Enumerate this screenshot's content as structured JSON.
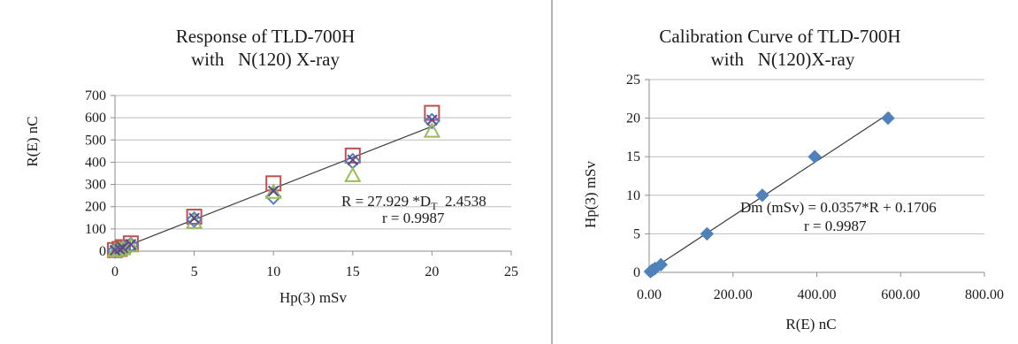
{
  "chart_data": [
    {
      "type": "scatter",
      "title": [
        "Response of TLD-700H",
        "with   N(120) X-ray"
      ],
      "xlabel": "Hp(3) mSv",
      "ylabel": "R(E) nC",
      "xlim": [
        0,
        25
      ],
      "ylim": [
        0,
        700
      ],
      "xticks": [
        "0",
        "5",
        "10",
        "15",
        "20",
        "25"
      ],
      "yticks": [
        "0",
        "100",
        "200",
        "300",
        "400",
        "500",
        "600",
        "700"
      ],
      "grid": "horizontal",
      "series": [
        {
          "marker": "square",
          "color": "#c0504d",
          "x": [
            0,
            0.3,
            0.5,
            1,
            5,
            10,
            15,
            20
          ],
          "y": [
            5,
            10,
            18,
            35,
            155,
            305,
            430,
            622
          ]
        },
        {
          "marker": "diamond",
          "color": "#4f81bd",
          "x": [
            0,
            0.3,
            0.5,
            1,
            5,
            10,
            15,
            20
          ],
          "y": [
            3,
            8,
            14,
            28,
            142,
            245,
            405,
            585
          ]
        },
        {
          "marker": "triangle",
          "color": "#9bbb59",
          "x": [
            0,
            0.3,
            0.5,
            1,
            5,
            10,
            15,
            20
          ],
          "y": [
            2,
            7,
            12,
            24,
            130,
            265,
            340,
            540
          ]
        },
        {
          "marker": "x",
          "color": "#5e4a8c",
          "x": [
            0,
            0.3,
            0.5,
            1,
            5,
            10,
            15,
            20
          ],
          "y": [
            4,
            9,
            15,
            30,
            148,
            270,
            410,
            590
          ]
        }
      ],
      "trendline": {
        "slope": 27.929,
        "intercept": 2.4538
      },
      "annotation": {
        "line1": "R = 27.929  *D",
        "sub": "T",
        "line1b": "  2.4538",
        "line2": "r = 0.9987"
      }
    },
    {
      "type": "scatter",
      "title": [
        "Calibration Curve of TLD-700H",
        "with   N(120)X-ray"
      ],
      "xlabel": "R(E) nC",
      "ylabel": "Hp(3) mSv",
      "xlim": [
        0,
        800
      ],
      "ylim": [
        0,
        25
      ],
      "xticks": [
        "0.00",
        "200.00",
        "400.00",
        "600.00",
        "800.00"
      ],
      "yticks": [
        "0",
        "5",
        "10",
        "15",
        "20",
        "25"
      ],
      "grid": "horizontal",
      "series": [
        {
          "marker": "diamond",
          "color": "#4f81bd",
          "x": [
            3,
            8,
            14,
            28,
            138,
            270,
            395,
            570
          ],
          "y": [
            0.1,
            0.3,
            0.5,
            1,
            5,
            10,
            15,
            20
          ]
        }
      ],
      "trendline": {
        "slope": 0.0357,
        "intercept": 0.1706
      },
      "annotation": {
        "line1": "Dm (mSv) = 0.0357*R + 0.1706",
        "line2": "r = 0.9987"
      }
    }
  ]
}
